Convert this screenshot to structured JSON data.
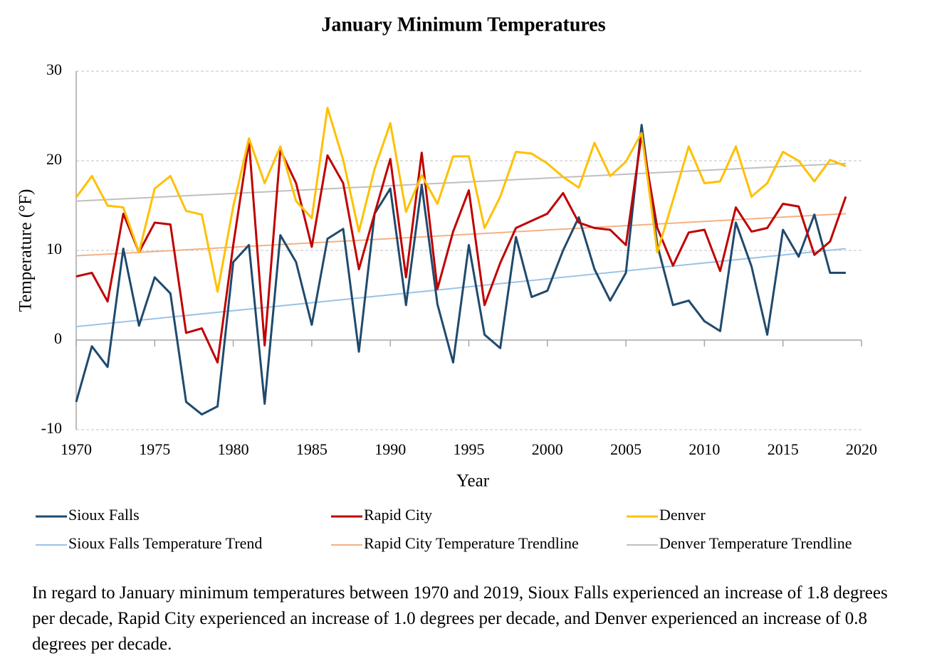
{
  "chart_data": {
    "type": "line",
    "title": "January Minimum Temperatures",
    "xlabel": "Year",
    "ylabel": "Temperature (°F)",
    "x": [
      1970,
      1971,
      1972,
      1973,
      1974,
      1975,
      1976,
      1977,
      1978,
      1979,
      1980,
      1981,
      1982,
      1983,
      1984,
      1985,
      1986,
      1987,
      1988,
      1989,
      1990,
      1991,
      1992,
      1993,
      1994,
      1995,
      1996,
      1997,
      1998,
      1999,
      2000,
      2001,
      2002,
      2003,
      2004,
      2005,
      2006,
      2007,
      2008,
      2009,
      2010,
      2011,
      2012,
      2013,
      2014,
      2015,
      2016,
      2017,
      2018,
      2019
    ],
    "series": [
      {
        "name": "Sioux Falls",
        "color": "#1f4a6e",
        "values": [
          -6.9,
          -0.7,
          -3.0,
          10.2,
          1.6,
          7.0,
          5.2,
          -6.9,
          -8.3,
          -7.4,
          8.7,
          10.6,
          -7.1,
          11.7,
          8.7,
          1.7,
          11.3,
          12.4,
          -1.3,
          14.1,
          16.9,
          3.9,
          17.3,
          4.0,
          -2.5,
          10.6,
          0.6,
          -0.9,
          11.5,
          4.8,
          5.5,
          10.0,
          13.7,
          7.9,
          4.4,
          7.5,
          24.0,
          10.6,
          3.9,
          4.4,
          2.1,
          1.0,
          13.1,
          8.2,
          0.6,
          12.3,
          9.3,
          14.0,
          7.5,
          7.5
        ]
      },
      {
        "name": "Rapid City",
        "color": "#c00000",
        "values": [
          7.1,
          7.5,
          4.3,
          14.1,
          9.8,
          13.1,
          12.9,
          0.8,
          1.3,
          -2.5,
          10.6,
          22.2,
          -0.6,
          21.2,
          17.5,
          10.4,
          20.6,
          17.5,
          7.9,
          14.1,
          20.2,
          7.0,
          20.9,
          5.7,
          12.1,
          16.7,
          3.9,
          8.6,
          12.5,
          13.3,
          14.1,
          16.4,
          13.1,
          12.5,
          12.3,
          10.6,
          22.9,
          12.5,
          8.3,
          12.0,
          12.3,
          7.7,
          14.8,
          12.1,
          12.5,
          15.2,
          14.9,
          9.5,
          11.0,
          16.0
        ]
      },
      {
        "name": "Denver",
        "color": "#ffc000",
        "values": [
          15.9,
          18.3,
          15.0,
          14.8,
          9.8,
          16.9,
          18.3,
          14.4,
          14.0,
          5.4,
          14.9,
          22.5,
          17.5,
          21.6,
          15.5,
          13.6,
          25.9,
          20.1,
          12.1,
          19.1,
          24.2,
          14.3,
          18.4,
          15.2,
          20.5,
          20.5,
          12.5,
          16.0,
          21.0,
          20.8,
          19.7,
          18.2,
          17.0,
          22.0,
          18.3,
          19.9,
          23.1,
          9.8,
          15.6,
          21.6,
          17.5,
          17.7,
          21.6,
          16.0,
          17.5,
          21.0,
          20.0,
          17.7,
          20.1,
          19.4
        ]
      },
      {
        "name": "Sioux Falls Temperature Trend",
        "color": "#9dc3e6",
        "x": [
          1970,
          2019
        ],
        "values": [
          1.5,
          10.2
        ]
      },
      {
        "name": "Rapid City Temperature Trendline",
        "color": "#f4b183",
        "x": [
          1970,
          2019
        ],
        "values": [
          9.4,
          14.1
        ]
      },
      {
        "name": "Denver Temperature Trendline",
        "color": "#bfbfbf",
        "x": [
          1970,
          2019
        ],
        "values": [
          15.5,
          19.7
        ]
      }
    ],
    "xlim": [
      1970,
      2020
    ],
    "xticks": [
      1970,
      1975,
      1980,
      1985,
      1990,
      1995,
      2000,
      2005,
      2010,
      2015,
      2020
    ],
    "ylim": [
      -10,
      30
    ],
    "yticks": [
      -10,
      0,
      10,
      20,
      30
    ],
    "grid": true,
    "caption": "In regard to January minimum temperatures between 1970 and 2019, Sioux Falls experienced an increase of 1.8 degrees per decade, Rapid City experienced an increase of 1.0 degrees per decade, and Denver experienced an increase of 0.8 degrees per decade."
  }
}
